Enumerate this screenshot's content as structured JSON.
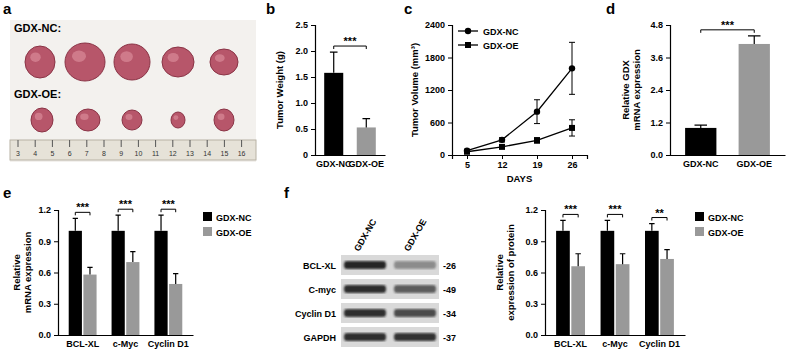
{
  "panel_labels": [
    "a",
    "b",
    "c",
    "d",
    "e",
    "f"
  ],
  "photo": {
    "groups": [
      "GDX-NC:",
      "GDX-OE:"
    ],
    "ruler": [
      3,
      4,
      5,
      6,
      7,
      8,
      9,
      10,
      11,
      12,
      13,
      14,
      15,
      16
    ]
  },
  "blot": {
    "lanes": [
      "GDX-NC",
      "GDX-OE"
    ],
    "bands": [
      {
        "name": "BCL-XL",
        "size": "-26"
      },
      {
        "name": "C-myc",
        "size": "-49"
      },
      {
        "name": "Cyclin D1",
        "size": "-34"
      },
      {
        "name": "GAPDH",
        "size": "-37"
      }
    ]
  },
  "chart_data": [
    {
      "type": "bar",
      "categories": [
        "GDX-NC",
        "GDX-OE"
      ],
      "values": [
        1.58,
        0.53
      ],
      "errors": [
        0.4,
        0.17
      ],
      "colors": [
        "#000000",
        "#999999"
      ],
      "ylabel": "Tumor Weight (g)",
      "ylim": [
        0,
        2.5
      ],
      "yticks": [
        0,
        0.5,
        {
          "value": 1,
          "label": "1.0"
        },
        1.5,
        {
          "value": 2,
          "label": "2.0"
        },
        2.5
      ],
      "significance": [
        "***"
      ]
    },
    {
      "type": "line",
      "x": [
        5,
        12,
        19,
        26
      ],
      "xlim": [
        2,
        29
      ],
      "xticks": [
        5,
        12,
        19,
        26
      ],
      "xlabel": "DAYS",
      "ylabel": "Tumor Volume (mm³)",
      "ylim": [
        0,
        2400
      ],
      "yticks": [
        0,
        600,
        1200,
        1800,
        2400
      ],
      "legend": "upper left",
      "series": [
        {
          "name": "GDX-NC",
          "color": "#000000",
          "marker": "circle",
          "values": [
            80,
            280,
            800,
            1600
          ],
          "errors": [
            15,
            40,
            220,
            480
          ]
        },
        {
          "name": "GDX-OE",
          "color": "#000000",
          "marker": "square",
          "values": [
            60,
            150,
            270,
            500
          ],
          "errors": [
            10,
            25,
            50,
            150
          ]
        }
      ]
    },
    {
      "type": "bar",
      "categories": [
        "GDX-NC",
        "GDX-OE"
      ],
      "values": [
        1.0,
        4.1
      ],
      "errors": [
        0.1,
        0.3
      ],
      "colors": [
        "#000000",
        "#999999"
      ],
      "ylabel": [
        "Relative GDX",
        "mRNA expression"
      ],
      "ylim": [
        0,
        4.8
      ],
      "yticks": [
        {
          "value": 0,
          "label": "0.0"
        },
        1.2,
        2.4,
        3.6,
        4.8
      ],
      "significance": [
        "***"
      ]
    },
    {
      "type": "bar",
      "categories": [
        "BCL-XL",
        "c-Myc",
        "Cyclin D1"
      ],
      "ylabel": [
        "Relative",
        "mRNA expression"
      ],
      "ylim": [
        0,
        1.2
      ],
      "yticks": [
        {
          "value": 0,
          "label": "0.0"
        },
        0.3,
        0.6,
        0.9,
        1.2
      ],
      "legend": "right",
      "series": [
        {
          "name": "GDX-NC",
          "color": "#000000",
          "values": [
            1.0,
            1.0,
            1.0
          ],
          "errors": [
            0.12,
            0.15,
            0.15
          ]
        },
        {
          "name": "GDX-OE",
          "color": "#999999",
          "values": [
            0.58,
            0.7,
            0.49
          ],
          "errors": [
            0.07,
            0.1,
            0.1
          ]
        }
      ],
      "significance": [
        "***",
        "***",
        "***"
      ]
    },
    {
      "type": "bar",
      "categories": [
        "BCL-XL",
        "c-Myc",
        "Cyclin D1"
      ],
      "ylabel": [
        "Relative",
        "expression of protein"
      ],
      "ylim": [
        0,
        1.2
      ],
      "yticks": [
        {
          "value": 0,
          "label": "0.0"
        },
        0.3,
        0.6,
        0.9,
        1.2
      ],
      "legend": "right",
      "series": [
        {
          "name": "GDX-NC",
          "color": "#000000",
          "values": [
            1.0,
            1.0,
            1.0
          ],
          "errors": [
            0.1,
            0.1,
            0.07
          ]
        },
        {
          "name": "GDX-OE",
          "color": "#999999",
          "values": [
            0.66,
            0.68,
            0.73
          ],
          "errors": [
            0.12,
            0.1,
            0.09
          ]
        }
      ],
      "significance": [
        "***",
        "***",
        "**"
      ]
    }
  ]
}
